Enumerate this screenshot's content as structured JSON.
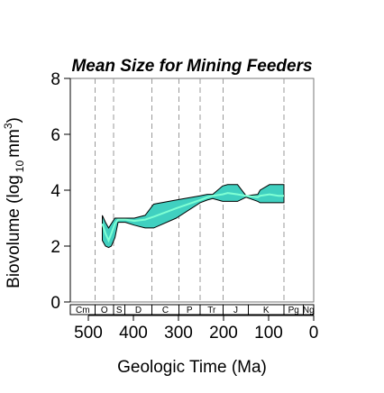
{
  "chart_data": {
    "type": "area",
    "title": "Mean Size for Mining Feeders",
    "xlabel": "Geologic Time (Ma)",
    "ylabel_main": "Biovolume (log",
    "ylabel_sub": "10",
    "ylabel_unit": "mm",
    "ylabel_sup": "3",
    "ylabel_close": ")",
    "xlim": [
      540,
      0
    ],
    "ylim": [
      0,
      8
    ],
    "x_ticks": [
      500,
      400,
      300,
      200,
      100,
      0
    ],
    "y_ticks": [
      0,
      2,
      4,
      6,
      8
    ],
    "boundaries": [
      485,
      444,
      359,
      299,
      252,
      201,
      66
    ],
    "periods": [
      {
        "label": "Cm",
        "start": 541,
        "end": 485
      },
      {
        "label": "O",
        "start": 485,
        "end": 444
      },
      {
        "label": "S",
        "start": 444,
        "end": 419
      },
      {
        "label": "D",
        "start": 419,
        "end": 359
      },
      {
        "label": "C",
        "start": 359,
        "end": 299
      },
      {
        "label": "P",
        "start": 299,
        "end": 252
      },
      {
        "label": "Tr",
        "start": 252,
        "end": 201
      },
      {
        "label": "J",
        "start": 201,
        "end": 145
      },
      {
        "label": "K",
        "start": 145,
        "end": 66
      },
      {
        "label": "Pg",
        "start": 66,
        "end": 23
      },
      {
        "label": "Ng",
        "start": 23,
        "end": 0
      }
    ],
    "series": [
      {
        "x": [
          469,
          462,
          455,
          449,
          441,
          434,
          418,
          398,
          374,
          355,
          305,
          252,
          236,
          224,
          202,
          191,
          169,
          150,
          124,
          119,
          98,
          78,
          66
        ],
        "mean": [
          2.8,
          2.45,
          2.2,
          2.45,
          2.8,
          2.95,
          2.95,
          2.9,
          2.95,
          3.05,
          3.35,
          3.65,
          3.75,
          3.8,
          3.85,
          3.9,
          3.85,
          3.8,
          3.75,
          3.8,
          3.85,
          3.8,
          3.8
        ],
        "upper": [
          3.1,
          2.85,
          2.65,
          2.8,
          3.0,
          3.0,
          3.0,
          3.0,
          3.1,
          3.5,
          3.65,
          3.8,
          3.85,
          3.85,
          4.15,
          4.2,
          4.2,
          3.8,
          3.85,
          4.0,
          4.2,
          4.2,
          4.2
        ],
        "lower": [
          2.2,
          2.0,
          1.95,
          2.0,
          2.3,
          2.85,
          2.85,
          2.75,
          2.65,
          2.65,
          3.0,
          3.55,
          3.65,
          3.7,
          3.6,
          3.6,
          3.6,
          3.75,
          3.6,
          3.55,
          3.55,
          3.55,
          3.55
        ]
      }
    ],
    "fill_color": "#40d0c0",
    "line_color": "#7fffd4",
    "grid": false
  }
}
